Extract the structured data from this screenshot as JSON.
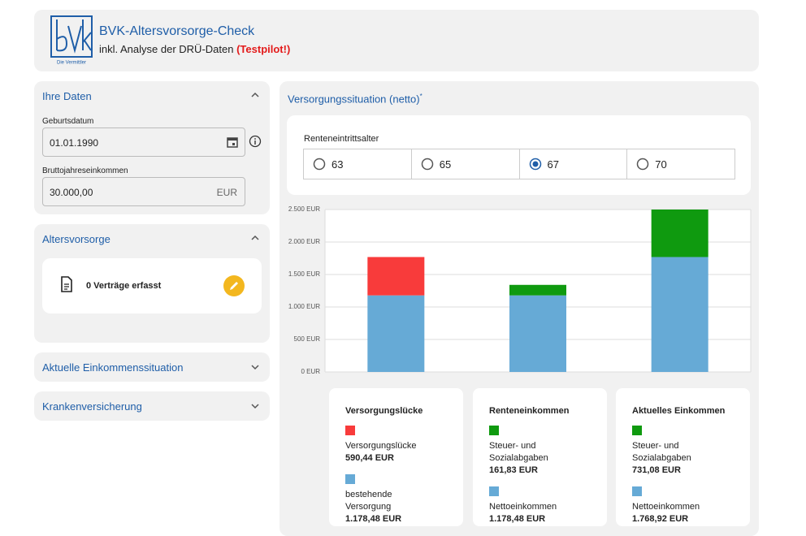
{
  "header": {
    "title": "BVK-Altersvorsorge-Check",
    "subtitle": "inkl. Analyse der DRÜ-Daten",
    "badge": "(Testpilot!)",
    "logo_text": "Die Vermittler"
  },
  "left": {
    "ihre_daten": {
      "title": "Ihre Daten",
      "fields": [
        {
          "label": "Geburtsdatum",
          "value": "01.01.1990"
        },
        {
          "label": "Bruttojahreseinkommen",
          "value": "30.000,00",
          "unit": "EUR"
        }
      ]
    },
    "altersvorsorge": {
      "title": "Altersvorsorge",
      "contracts": "0 Verträge erfasst"
    },
    "collapsed": [
      "Aktuelle Einkommenssituation",
      "Krankenversicherung"
    ]
  },
  "right": {
    "title": "Versorgungssituation (netto)",
    "title_mark": "*",
    "retirement": {
      "label": "Renteneintrittsalter",
      "options": [
        "63",
        "65",
        "67",
        "70"
      ],
      "selected": 2
    },
    "cards": [
      {
        "title": "Versorgungslücke",
        "items": [
          {
            "color": "#f83b3b",
            "label": "Versorgungslücke",
            "amount": "590,44 EUR"
          },
          {
            "color": "#66aad6",
            "label": "bestehende Versorgung",
            "amount": "1.178,48 EUR"
          }
        ]
      },
      {
        "title": "Renteneinkommen",
        "items": [
          {
            "color": "#0f9a0f",
            "label": "Steuer- und Sozialabgaben",
            "amount": "161,83 EUR"
          },
          {
            "color": "#66aad6",
            "label": "Nettoeinkommen",
            "amount": "1.178,48 EUR"
          }
        ]
      },
      {
        "title": "Aktuelles Einkommen",
        "items": [
          {
            "color": "#0f9a0f",
            "label": "Steuer- und Sozialabgaben",
            "amount": "731,08 EUR"
          },
          {
            "color": "#66aad6",
            "label": "Nettoeinkommen",
            "amount": "1.768,92 EUR"
          }
        ]
      }
    ]
  },
  "chart_data": {
    "type": "bar",
    "stacked": true,
    "categories": [
      null,
      null,
      null
    ],
    "series": [
      {
        "color": "#66aad6",
        "values": [
          1178.48,
          1178.48,
          1768.92
        ]
      },
      {
        "color": "#f83b3b",
        "values": [
          590.44,
          null,
          null
        ]
      },
      {
        "color": "#0f9a0f",
        "values": [
          null,
          161.83,
          731.08
        ]
      }
    ],
    "ylim": [
      0,
      2500
    ],
    "yticks": [
      {
        "value": 0,
        "label": "0 EUR"
      },
      {
        "value": 500,
        "label": "500 EUR"
      },
      {
        "value": 1000,
        "label": "1.000 EUR"
      },
      {
        "value": 1500,
        "label": "1.500 EUR"
      },
      {
        "value": 2000,
        "label": "2.000 EUR"
      },
      {
        "value": 2500,
        "label": "2.500 EUR"
      }
    ],
    "grid": true
  }
}
